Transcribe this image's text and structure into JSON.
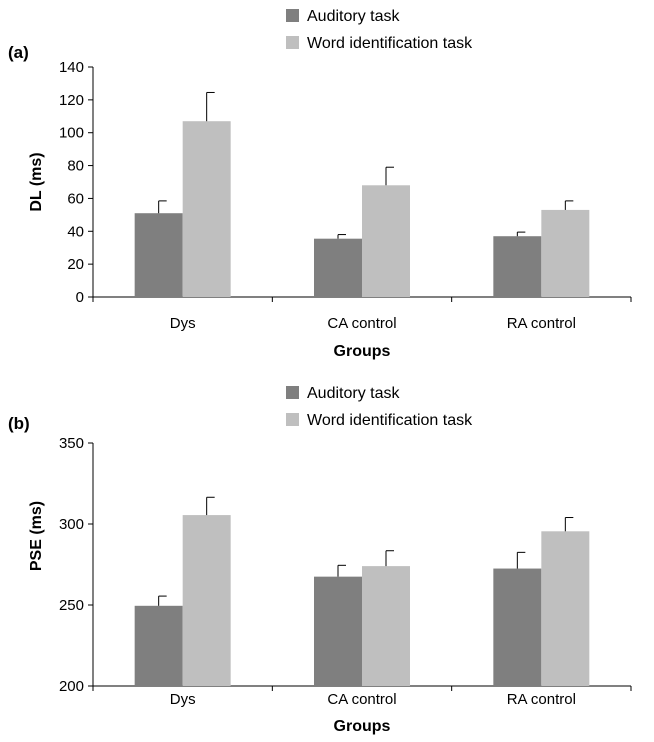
{
  "colors": {
    "auditory": "#7f7f7f",
    "word": "#bfbfbf",
    "axis": "#000000"
  },
  "chart_data": [
    {
      "type": "bar",
      "panel_label": "(a)",
      "categories": [
        "Dys",
        "CA control",
        "RA control"
      ],
      "series": [
        {
          "name": "Auditory task",
          "values": [
            51,
            35.5,
            37
          ],
          "errors": [
            7.5,
            2.5,
            2.5
          ]
        },
        {
          "name": "Word identification task",
          "values": [
            107,
            68,
            53
          ],
          "errors": [
            17.5,
            11,
            5.5
          ]
        }
      ],
      "xlabel": "Groups",
      "ylabel": "DL (ms)",
      "ylim": [
        0,
        140
      ],
      "yticks": [
        0,
        20,
        40,
        60,
        80,
        100,
        120,
        140
      ],
      "grid": false,
      "legend": "top-center"
    },
    {
      "type": "bar",
      "panel_label": "(b)",
      "categories": [
        "Dys",
        "CA control",
        "RA control"
      ],
      "series": [
        {
          "name": "Auditory task",
          "values": [
            249.5,
            267.5,
            272.5
          ],
          "errors": [
            6,
            7,
            10
          ]
        },
        {
          "name": "Word identification task",
          "values": [
            305.5,
            274,
            295.5
          ],
          "errors": [
            11,
            9.5,
            8.5
          ]
        }
      ],
      "xlabel": "Groups",
      "ylabel": "PSE (ms)",
      "ylim": [
        200,
        350
      ],
      "yticks": [
        200,
        250,
        300,
        350
      ],
      "grid": false,
      "legend": "top-center"
    }
  ]
}
